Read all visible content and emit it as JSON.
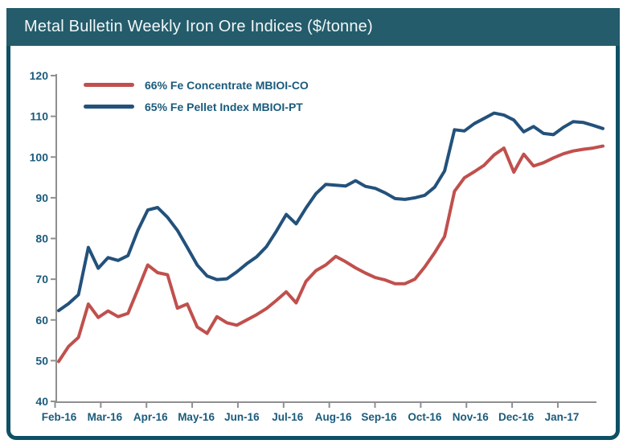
{
  "header": {
    "title": "Metal Bulletin Weekly Iron Ore Indices ($/tonne)"
  },
  "styles": {
    "title_bar_bg": "#245C6B",
    "frame_border": "#0D5164",
    "label_color": "#1A5B7C",
    "axis_color": "#8F8F8F",
    "plot_bg": "#FFFFFF"
  },
  "chart_data": {
    "type": "line",
    "title": "Metal Bulletin Weekly Iron Ore Indices ($/tonne)",
    "x_frequency": "weekly",
    "x_categories": [
      "Feb-16",
      "Mar-16",
      "Apr-16",
      "May-16",
      "Jun-16",
      "Jul-16",
      "Aug-16",
      "Sep-16",
      "Oct-16",
      "Nov-16",
      "Dec-16",
      "Jan-17"
    ],
    "ylim": [
      40,
      120
    ],
    "y_ticks": [
      40,
      50,
      60,
      70,
      80,
      90,
      100,
      110,
      120
    ],
    "grid": false,
    "legend_position": "top-left-inside",
    "series": [
      {
        "name": "66% Fe Concentrate MBIOI-CO",
        "color": "#C0504D",
        "values": [
          49.8,
          53.5,
          55.7,
          63.9,
          60.6,
          62.2,
          60.8,
          61.6,
          67.5,
          73.5,
          71.6,
          71.1,
          62.9,
          63.9,
          58.3,
          56.7,
          60.8,
          59.3,
          58.7,
          60.0,
          61.3,
          62.8,
          64.8,
          66.9,
          64.2,
          69.5,
          72.1,
          73.5,
          75.6,
          74.3,
          72.8,
          71.5,
          70.4,
          69.8,
          68.9,
          68.9,
          70.0,
          73.0,
          76.5,
          80.5,
          91.6,
          94.9,
          96.4,
          98.0,
          100.5,
          102.2,
          96.3,
          100.7,
          97.8,
          98.6,
          99.8,
          100.8,
          101.5,
          101.9,
          102.2,
          102.7
        ]
      },
      {
        "name": "65% Fe Pellet Index MBIOI-PT",
        "color": "#23517B",
        "values": [
          62.3,
          64.0,
          66.2,
          77.8,
          72.7,
          75.3,
          74.6,
          75.8,
          82.0,
          87.0,
          87.6,
          85.2,
          82.0,
          77.8,
          73.5,
          70.8,
          69.9,
          70.1,
          71.8,
          73.8,
          75.5,
          78.0,
          81.8,
          85.9,
          83.6,
          87.5,
          91.0,
          93.3,
          93.1,
          92.9,
          94.2,
          92.8,
          92.3,
          91.2,
          89.8,
          89.6,
          90.0,
          90.6,
          92.6,
          96.6,
          106.7,
          106.4,
          108.2,
          109.5,
          110.8,
          110.3,
          109.1,
          106.2,
          107.5,
          105.8,
          105.5,
          107.3,
          108.7,
          108.5,
          107.8,
          107.0
        ]
      }
    ]
  }
}
